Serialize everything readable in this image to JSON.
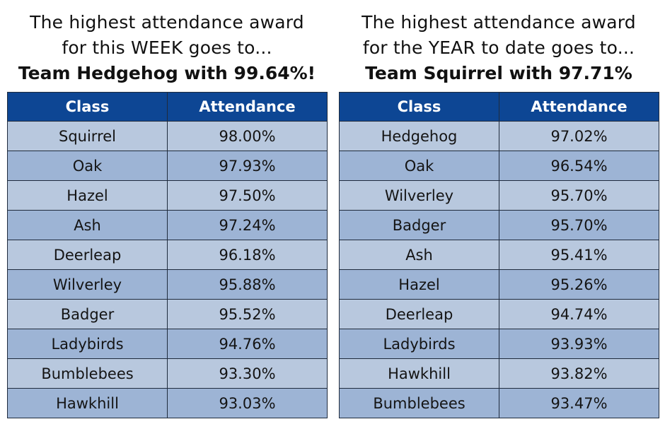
{
  "week": {
    "line1": "The highest attendance award",
    "line2": "for this WEEK goes to...",
    "winner": "Team Hedgehog with 99.64%!",
    "header_class": "Class",
    "header_attendance": "Attendance",
    "rows": [
      {
        "class": "Squirrel",
        "attendance": "98.00%"
      },
      {
        "class": "Oak",
        "attendance": "97.93%"
      },
      {
        "class": "Hazel",
        "attendance": "97.50%"
      },
      {
        "class": "Ash",
        "attendance": "97.24%"
      },
      {
        "class": "Deerleap",
        "attendance": "96.18%"
      },
      {
        "class": "Wilverley",
        "attendance": "95.88%"
      },
      {
        "class": "Badger",
        "attendance": "95.52%"
      },
      {
        "class": "Ladybirds",
        "attendance": "94.76%"
      },
      {
        "class": "Bumblebees",
        "attendance": "93.30%"
      },
      {
        "class": "Hawkhill",
        "attendance": "93.03%"
      }
    ]
  },
  "year": {
    "line1": "The highest attendance award",
    "line2": "for the YEAR to date goes to...",
    "winner": "Team Squirrel with 97.71%",
    "header_class": "Class",
    "header_attendance": "Attendance",
    "rows": [
      {
        "class": "Hedgehog",
        "attendance": "97.02%"
      },
      {
        "class": "Oak",
        "attendance": "96.54%"
      },
      {
        "class": "Wilverley",
        "attendance": "95.70%"
      },
      {
        "class": "Badger",
        "attendance": "95.70%"
      },
      {
        "class": "Ash",
        "attendance": "95.41%"
      },
      {
        "class": "Hazel",
        "attendance": "95.26%"
      },
      {
        "class": "Deerleap",
        "attendance": "94.74%"
      },
      {
        "class": "Ladybirds",
        "attendance": "93.93%"
      },
      {
        "class": "Hawkhill",
        "attendance": "93.82%"
      },
      {
        "class": "Bumblebees",
        "attendance": "93.47%"
      }
    ]
  },
  "colors": {
    "header_bg": "#0d4694",
    "row_light": "#b8c8de",
    "row_dark": "#9db4d5"
  }
}
